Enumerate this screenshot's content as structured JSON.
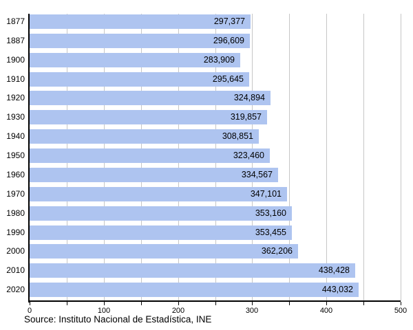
{
  "chart_data": {
    "type": "bar",
    "orientation": "horizontal",
    "title": "",
    "xlabel": "",
    "ylabel": "",
    "categories": [
      "1877",
      "1887",
      "1900",
      "1910",
      "1920",
      "1930",
      "1940",
      "1950",
      "1960",
      "1970",
      "1980",
      "1990",
      "2000",
      "2010",
      "2020"
    ],
    "values": [
      297377,
      296609,
      283909,
      295645,
      324894,
      319857,
      308851,
      323460,
      334567,
      347101,
      353160,
      353455,
      362206,
      438428,
      443032
    ],
    "value_labels": [
      "297,377",
      "296,609",
      "283,909",
      "295,645",
      "324,894",
      "319,857",
      "308,851",
      "323,460",
      "334,567",
      "347,101",
      "353,160",
      "353,455",
      "362,206",
      "438,428",
      "443,032"
    ],
    "x_axis": {
      "max": 500,
      "tick_labels": [
        "0",
        "100",
        "200",
        "300",
        "400",
        "500"
      ],
      "major_tick_step": 100,
      "minor_tick_step": 50,
      "gridline_step": 50,
      "value_scale_divisor": 1000
    },
    "legend": null,
    "grid": "vertical",
    "source": "Source: Instituto Nacional de Estadística, INE",
    "colors": {
      "bar": "#aec4f0",
      "gridline": "#c6c6c6",
      "axis": "#000000",
      "text": "#000000",
      "background": "#ffffff"
    }
  }
}
